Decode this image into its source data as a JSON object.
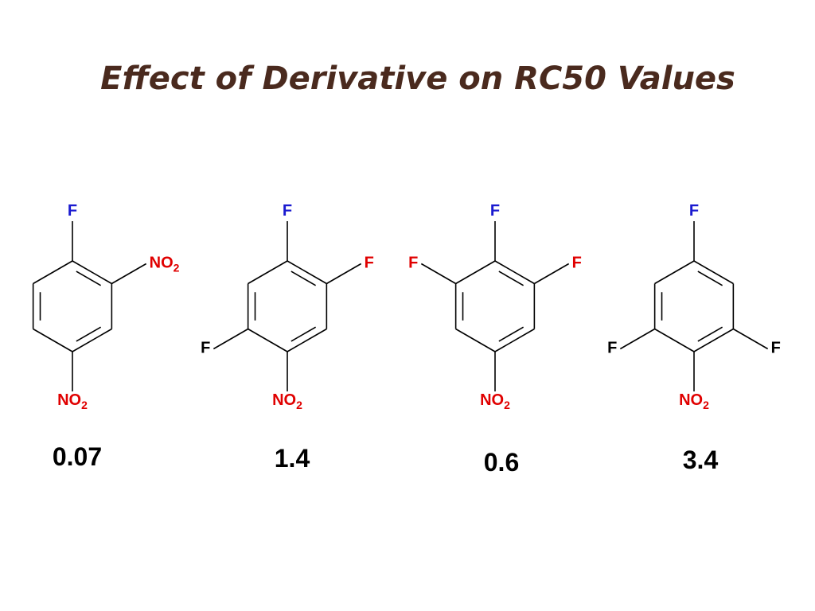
{
  "header": {
    "title": "Effect of Derivative on RC50 Values"
  },
  "molecules": [
    {
      "substituents": [
        {
          "position": "top",
          "label": "F",
          "color": "#1a1ad0"
        },
        {
          "position": "upper-right",
          "label": "NO",
          "sub": "2",
          "color": "#e00000"
        },
        {
          "position": "bottom",
          "label": "NO",
          "sub": "2",
          "color": "#e00000"
        }
      ],
      "value": 0.07
    },
    {
      "substituents": [
        {
          "position": "top",
          "label": "F",
          "color": "#1a1ad0"
        },
        {
          "position": "upper-right",
          "label": "F",
          "color": "#e00000"
        },
        {
          "position": "lower-left",
          "label": "F",
          "color": "#000000"
        },
        {
          "position": "bottom",
          "label": "NO",
          "sub": "2",
          "color": "#e00000"
        }
      ],
      "value": 1.4
    },
    {
      "substituents": [
        {
          "position": "top",
          "label": "F",
          "color": "#1a1ad0"
        },
        {
          "position": "upper-right",
          "label": "F",
          "color": "#e00000"
        },
        {
          "position": "upper-left",
          "label": "F",
          "color": "#e00000"
        },
        {
          "position": "bottom",
          "label": "NO",
          "sub": "2",
          "color": "#e00000"
        }
      ],
      "value": 0.6
    },
    {
      "substituents": [
        {
          "position": "top",
          "label": "F",
          "color": "#1a1ad0"
        },
        {
          "position": "lower-right",
          "label": "F",
          "color": "#000000"
        },
        {
          "position": "lower-left",
          "label": "F",
          "color": "#000000"
        },
        {
          "position": "bottom",
          "label": "NO",
          "sub": "2",
          "color": "#e00000"
        }
      ],
      "value": 3.4
    }
  ]
}
